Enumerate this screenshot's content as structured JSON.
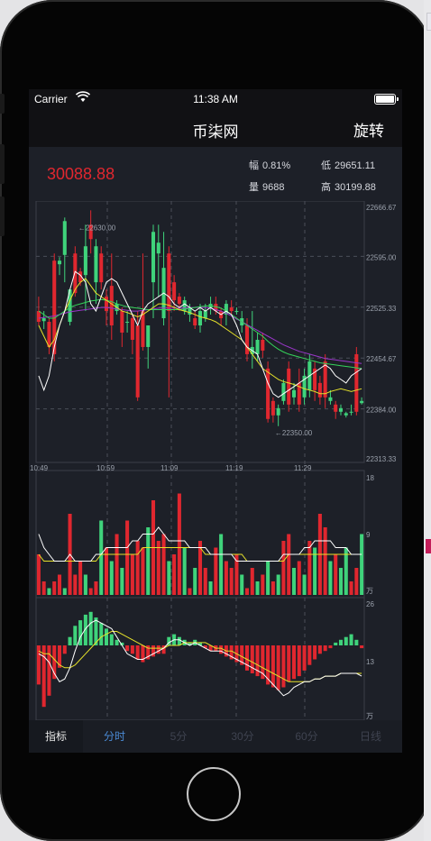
{
  "status_bar": {
    "carrier": "Carrier",
    "time": "11:38 AM"
  },
  "nav": {
    "title": "币柒网",
    "right_button": "旋转"
  },
  "quote": {
    "price": "30088.88",
    "change_label": "幅",
    "change_value": "0.81%",
    "low_label": "低",
    "low_value": "29651.11",
    "volume_label": "量",
    "volume_value": "9688",
    "high_label": "高",
    "high_value": "30199.88"
  },
  "tabs": [
    "指标",
    "分时",
    "5分",
    "30分",
    "60分",
    "日线"
  ],
  "active_tab": 1,
  "colors": {
    "up": "#3fd37b",
    "down": "#e0272f",
    "ma_white": "#ffffff",
    "ma_yellow": "#e6e22a",
    "ma_green": "#35d45a",
    "ma_purple": "#9a36c9"
  },
  "chart_data": [
    {
      "type": "candlestick",
      "x_ticks": [
        "10:49",
        "10:59",
        "11:09",
        "11:19",
        "11:29"
      ],
      "y_ticks": [
        "22666.67",
        "22595.00",
        "22525.33",
        "22454.67",
        "22384.00",
        "22313.33"
      ],
      "ylim": [
        22313.33,
        22666.67
      ],
      "annotations": [
        "←22630.00",
        "←22350.00"
      ],
      "candles": [
        [
          22520,
          22505,
          22540,
          22500
        ],
        [
          22506,
          22510,
          22520,
          22495
        ],
        [
          22505,
          22470,
          22510,
          22460
        ],
        [
          22590,
          22460,
          22600,
          22450
        ],
        [
          22585,
          22590,
          22595,
          22570
        ],
        [
          22598,
          22645,
          22650,
          22560
        ],
        [
          22505,
          22550,
          22550,
          22500
        ],
        [
          22600,
          22545,
          22610,
          22540
        ],
        [
          22575,
          22560,
          22580,
          22555
        ],
        [
          22570,
          22610,
          22640,
          22520
        ],
        [
          22640,
          22620,
          22660,
          22600
        ],
        [
          22560,
          22610,
          22620,
          22530
        ],
        [
          22600,
          22560,
          22610,
          22550
        ],
        [
          22540,
          22520,
          22550,
          22500
        ],
        [
          22555,
          22500,
          22600,
          22480
        ],
        [
          22520,
          22530,
          22535,
          22515
        ],
        [
          22520,
          22490,
          22525,
          22470
        ],
        [
          22505,
          22505,
          22520,
          22490
        ],
        [
          22510,
          22480,
          22515,
          22460
        ],
        [
          22500,
          22400,
          22520,
          22395
        ],
        [
          22520,
          22470,
          22600,
          22465
        ],
        [
          22470,
          22500,
          22500,
          22440
        ],
        [
          22560,
          22630,
          22640,
          22510
        ],
        [
          22600,
          22615,
          22640,
          22540
        ],
        [
          22510,
          22580,
          22630,
          22500
        ],
        [
          22600,
          22520,
          22610,
          22400
        ],
        [
          22560,
          22535,
          22570,
          22520
        ],
        [
          22540,
          22530,
          22545,
          22520
        ],
        [
          22520,
          22535,
          22540,
          22515
        ],
        [
          22515,
          22525,
          22530,
          22505
        ],
        [
          22510,
          22500,
          22520,
          22495
        ],
        [
          22500,
          22520,
          22530,
          22490
        ],
        [
          22510,
          22520,
          22530,
          22505
        ],
        [
          22525,
          22530,
          22540,
          22515
        ],
        [
          22530,
          22520,
          22540,
          22515
        ],
        [
          22520,
          22510,
          22525,
          22500
        ],
        [
          22515,
          22530,
          22535,
          22500
        ],
        [
          22525,
          22520,
          22535,
          22515
        ],
        [
          22520,
          22520,
          22525,
          22515
        ],
        [
          22500,
          22510,
          22520,
          22490
        ],
        [
          22500,
          22460,
          22510,
          22450
        ],
        [
          22460,
          22470,
          22520,
          22440
        ],
        [
          22460,
          22480,
          22490,
          22450
        ],
        [
          22480,
          22465,
          22490,
          22455
        ],
        [
          22440,
          22370,
          22450,
          22365
        ],
        [
          22395,
          22375,
          22400,
          22365
        ],
        [
          22375,
          22385,
          22390,
          22360
        ],
        [
          22395,
          22420,
          22425,
          22390
        ],
        [
          22440,
          22390,
          22450,
          22380
        ],
        [
          22400,
          22410,
          22420,
          22390
        ],
        [
          22420,
          22390,
          22440,
          22380
        ],
        [
          22400,
          22430,
          22440,
          22390
        ],
        [
          22410,
          22450,
          22460,
          22400
        ],
        [
          22440,
          22410,
          22450,
          22395
        ],
        [
          22420,
          22400,
          22430,
          22390
        ],
        [
          22450,
          22400,
          22460,
          22385
        ],
        [
          22395,
          22400,
          22410,
          22390
        ],
        [
          22390,
          22380,
          22395,
          22370
        ],
        [
          22380,
          22385,
          22390,
          22375
        ],
        [
          22375,
          22378,
          22380,
          22372
        ],
        [
          22380,
          22380,
          22390,
          22375
        ],
        [
          22460,
          22380,
          22470,
          22375
        ],
        [
          22392,
          22395,
          22400,
          22390
        ]
      ],
      "ma_white": [
        22430,
        22410,
        22430,
        22470,
        22500,
        22520,
        22550,
        22575,
        22570,
        22560,
        22530,
        22520,
        22540,
        22560,
        22565,
        22560,
        22545,
        22530,
        22515,
        22500,
        22520,
        22530,
        22535,
        22540,
        22545,
        22540,
        22530,
        22525,
        22530,
        22525,
        22520,
        22525,
        22520,
        22525,
        22520,
        22515,
        22520,
        22515,
        22500,
        22480,
        22470,
        22465,
        22460,
        22440,
        22420,
        22405,
        22400,
        22405,
        22410,
        22415,
        22420,
        22425,
        22430,
        22435,
        22440,
        22445,
        22440,
        22430,
        22425,
        22420,
        22430,
        22435,
        22440
      ],
      "ma_yellow": [
        22500,
        22485,
        22470,
        22480,
        22500,
        22520,
        22535,
        22550,
        22560,
        22565,
        22555,
        22545,
        22540,
        22535,
        22530,
        22525,
        22520,
        22518,
        22515,
        22512,
        22515,
        22520,
        22525,
        22530,
        22530,
        22528,
        22525,
        22522,
        22520,
        22518,
        22515,
        22512,
        22510,
        22508,
        22505,
        22500,
        22495,
        22490,
        22485,
        22480,
        22470,
        22460,
        22450,
        22440,
        22435,
        22430,
        22425,
        22422,
        22420,
        22418,
        22415,
        22412,
        22410,
        22408,
        22405,
        22405,
        22408,
        22410,
        22412,
        22410,
        22408,
        22410,
        22412
      ],
      "ma_green": [
        22520,
        22515,
        22510,
        22510,
        22515,
        22520,
        22525,
        22528,
        22530,
        22532,
        22534,
        22535,
        22536,
        22535,
        22533,
        22530,
        22528,
        22526,
        22525,
        22524,
        22523,
        22522,
        22522,
        22522,
        22522,
        22522,
        22522,
        22522,
        22523,
        22524,
        22525,
        22526,
        22527,
        22527,
        22526,
        22524,
        22520,
        22515,
        22510,
        22505,
        22500,
        22495,
        22490,
        22485,
        22478,
        22472,
        22467,
        22463,
        22460,
        22458,
        22456,
        22454,
        22452,
        22450,
        22448,
        22447,
        22446,
        22445,
        22444,
        22443,
        22442,
        22441,
        22440
      ],
      "ma_purple": [
        22510,
        22511,
        22512,
        22513,
        22515,
        22517,
        22519,
        22520,
        22521,
        22522,
        22523,
        22524,
        22525,
        22525,
        22524,
        22523,
        22522,
        22521,
        22520,
        22520,
        22521,
        22522,
        22523,
        22524,
        22524,
        22524,
        22524,
        22524,
        22524,
        22525,
        22525,
        22525,
        22525,
        22524,
        22522,
        22520,
        22517,
        22513,
        22509,
        22505,
        22501,
        22497,
        22493,
        22489,
        22485,
        22481,
        22477,
        22473,
        22470,
        22467,
        22464,
        22462,
        22460,
        22458,
        22456,
        22454,
        22453,
        22452,
        22451,
        22450,
        22449,
        22448,
        22447
      ]
    },
    {
      "type": "bar",
      "name": "volume",
      "y_ticks": [
        "18",
        "9",
        "万"
      ],
      "ylim": [
        0,
        18
      ],
      "values": [
        6,
        2,
        1,
        2,
        3,
        1,
        12,
        3,
        5,
        3,
        1,
        2,
        11,
        7,
        5,
        9,
        4,
        11,
        6,
        8,
        7,
        10,
        14,
        8,
        9,
        5,
        6,
        15,
        7,
        1,
        4,
        8,
        4,
        2,
        7,
        9,
        5,
        4,
        6,
        3,
        1,
        4,
        2,
        3,
        5,
        2,
        3,
        8,
        9,
        4,
        5,
        3,
        8,
        7,
        12,
        10,
        5,
        6,
        4,
        7,
        2,
        4,
        9
      ],
      "directions": [
        "down",
        "down",
        "up",
        "down",
        "down",
        "up",
        "down",
        "down",
        "down",
        "up",
        "down",
        "down",
        "up",
        "down",
        "up",
        "down",
        "up",
        "down",
        "down",
        "down",
        "down",
        "up",
        "down",
        "down",
        "down",
        "up",
        "down",
        "down",
        "up",
        "down",
        "up",
        "down",
        "down",
        "up",
        "down",
        "up",
        "down",
        "down",
        "down",
        "up",
        "down",
        "down",
        "up",
        "down",
        "up",
        "down",
        "up",
        "down",
        "down",
        "up",
        "down",
        "up",
        "down",
        "up",
        "down",
        "down",
        "up",
        "down",
        "up",
        "up",
        "down",
        "down",
        "up"
      ],
      "ma_white": [
        9,
        7,
        6,
        5,
        5,
        5,
        6,
        5,
        5,
        5,
        5,
        6,
        6,
        7,
        7,
        7,
        7,
        7,
        8,
        8,
        9,
        9,
        9,
        10,
        9,
        8,
        8,
        8,
        8,
        7,
        7,
        7,
        7,
        6,
        6,
        6,
        6,
        6,
        5,
        5,
        5,
        5,
        5,
        5,
        5,
        5,
        5,
        6,
        6,
        6,
        6,
        7,
        7,
        8,
        8,
        8,
        8,
        7,
        7,
        7,
        6,
        6,
        6
      ],
      "ma_yellow": [
        6,
        5,
        5,
        5,
        5,
        5,
        5,
        5,
        5,
        5,
        5,
        5,
        6,
        6,
        6,
        6,
        6,
        6,
        6,
        6,
        7,
        7,
        7,
        7,
        7,
        7,
        7,
        7,
        7,
        7,
        7,
        7,
        6,
        6,
        6,
        6,
        6,
        6,
        6,
        6,
        5,
        5,
        5,
        5,
        5,
        5,
        5,
        5,
        6,
        6,
        6,
        6,
        6,
        6,
        6,
        6,
        6,
        6,
        6,
        6,
        6,
        6,
        6
      ]
    },
    {
      "type": "bar",
      "name": "macd",
      "y_ticks": [
        "26",
        "13",
        "万"
      ],
      "ylim": [
        -26,
        26
      ],
      "values": [
        -14,
        -22,
        -18,
        -12,
        -8,
        -3,
        3,
        7,
        9,
        11,
        12,
        10,
        8,
        6,
        4,
        2,
        1,
        -2,
        -3,
        -5,
        -6,
        -5,
        -4,
        -3,
        -3,
        3,
        4,
        3,
        2,
        1,
        2,
        1,
        -1,
        -2,
        -2,
        -3,
        -4,
        -5,
        -6,
        -7,
        -9,
        -10,
        -11,
        -12,
        -14,
        -15,
        -16,
        -15,
        -13,
        -12,
        -11,
        -9,
        -7,
        -5,
        -3,
        -2,
        -1,
        1,
        2,
        3,
        4,
        2,
        -1
      ],
      "dif": [
        -3,
        -4,
        -6,
        -10,
        -13,
        -12,
        -8,
        -2,
        3,
        6,
        8,
        9,
        8,
        7,
        6,
        3,
        0,
        -3,
        -4,
        -5,
        -5,
        -4,
        -3,
        -2,
        -1,
        1,
        2,
        2,
        1,
        0,
        1,
        0,
        -1,
        -2,
        -2,
        -2,
        -3,
        -4,
        -5,
        -6,
        -7,
        -8,
        -9,
        -10,
        -12,
        -14,
        -16,
        -18,
        -17,
        -15,
        -14,
        -13,
        -13,
        -12,
        -12,
        -11,
        -11,
        -11,
        -10,
        -10,
        -10,
        -10,
        -11
      ],
      "dea": [
        -2,
        -3,
        -3,
        -5,
        -7,
        -8,
        -8,
        -7,
        -5,
        -3,
        -1,
        1,
        3,
        4,
        5,
        5,
        4,
        3,
        2,
        1,
        0,
        -1,
        -1,
        -1,
        -1,
        0,
        0,
        0,
        1,
        1,
        1,
        1,
        1,
        0,
        -1,
        -1,
        -2,
        -2,
        -3,
        -4,
        -5,
        -6,
        -7,
        -8,
        -9,
        -10,
        -11,
        -12,
        -13,
        -13,
        -13,
        -13,
        -13,
        -12,
        -12,
        -11,
        -11,
        -11,
        -10,
        -10,
        -10,
        -10,
        -10
      ]
    }
  ]
}
